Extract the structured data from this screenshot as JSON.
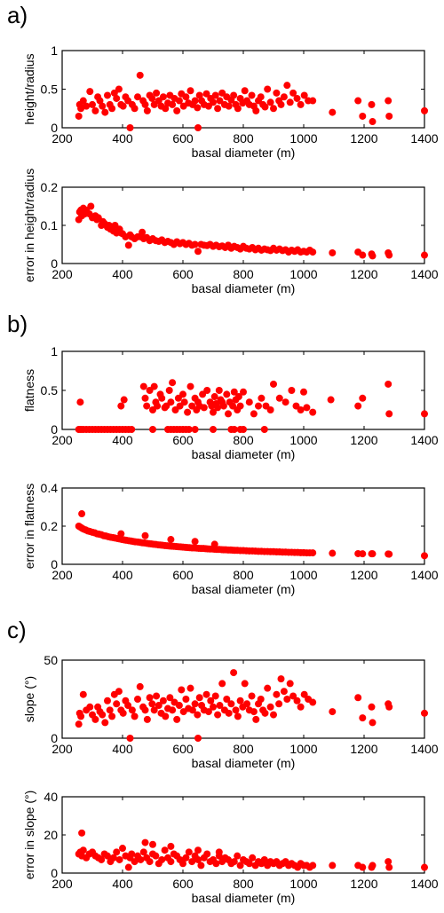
{
  "chart_data": [
    {
      "type": "scatter",
      "panel": "a)",
      "xlabel": "basal diameter (m)",
      "ylabel": "height/radius",
      "xlim": [
        200,
        1400
      ],
      "ylim": [
        0,
        1
      ],
      "xticks": [
        200,
        400,
        600,
        800,
        1000,
        1200,
        1400
      ],
      "yticks": [
        0,
        0.5,
        1
      ],
      "ytick_labels": [
        "0",
        "0.5",
        "1"
      ],
      "marker_color": "#ff0000",
      "x": [
        255,
        258,
        262,
        270,
        280,
        292,
        300,
        310,
        318,
        325,
        333,
        342,
        350,
        358,
        365,
        373,
        380,
        388,
        395,
        402,
        410,
        418,
        425,
        432,
        440,
        450,
        458,
        468,
        475,
        482,
        490,
        498,
        505,
        512,
        520,
        528,
        535,
        542,
        550,
        557,
        565,
        572,
        580,
        588,
        595,
        602,
        610,
        618,
        625,
        632,
        640,
        648,
        650,
        655,
        662,
        670,
        678,
        685,
        692,
        700,
        708,
        715,
        722,
        730,
        738,
        745,
        752,
        760,
        768,
        775,
        782,
        790,
        798,
        805,
        812,
        820,
        828,
        835,
        842,
        850,
        858,
        865,
        872,
        880,
        890,
        900,
        910,
        918,
        925,
        935,
        945,
        955,
        965,
        978,
        990,
        1002,
        1015,
        1030,
        1095,
        1180,
        1195,
        1225,
        1228,
        1280,
        1283,
        1400
      ],
      "y": [
        0.15,
        0.3,
        0.25,
        0.35,
        0.28,
        0.47,
        0.3,
        0.22,
        0.4,
        0.35,
        0.28,
        0.2,
        0.42,
        0.3,
        0.25,
        0.45,
        0.38,
        0.5,
        0.3,
        0.28,
        0.4,
        0.35,
        0.0,
        0.3,
        0.25,
        0.4,
        0.68,
        0.35,
        0.3,
        0.22,
        0.42,
        0.38,
        0.3,
        0.45,
        0.35,
        0.28,
        0.4,
        0.25,
        0.32,
        0.42,
        0.3,
        0.38,
        0.22,
        0.35,
        0.44,
        0.28,
        0.4,
        0.32,
        0.48,
        0.3,
        0.35,
        0.26,
        0.0,
        0.42,
        0.35,
        0.3,
        0.44,
        0.28,
        0.38,
        0.33,
        0.42,
        0.25,
        0.35,
        0.45,
        0.3,
        0.4,
        0.28,
        0.36,
        0.42,
        0.3,
        0.25,
        0.38,
        0.32,
        0.48,
        0.35,
        0.3,
        0.42,
        0.28,
        0.22,
        0.35,
        0.4,
        0.3,
        0.27,
        0.5,
        0.33,
        0.25,
        0.45,
        0.35,
        0.3,
        0.4,
        0.55,
        0.33,
        0.45,
        0.38,
        0.3,
        0.42,
        0.35,
        0.35,
        0.2,
        0.35,
        0.15,
        0.3,
        0.08,
        0.35,
        0.15,
        0.22
      ]
    },
    {
      "type": "scatter",
      "xlabel": "basal diameter (m)",
      "ylabel": "error in height/radius",
      "xlim": [
        200,
        1400
      ],
      "ylim": [
        0,
        0.2
      ],
      "xticks": [
        200,
        400,
        600,
        800,
        1000,
        1200,
        1400
      ],
      "yticks": [
        0,
        0.1,
        0.2
      ],
      "ytick_labels": [
        "0",
        "0.1",
        "0.2"
      ],
      "marker_color": "#ff0000",
      "x": [
        255,
        258,
        262,
        265,
        270,
        275,
        280,
        290,
        295,
        300,
        310,
        315,
        320,
        330,
        335,
        340,
        350,
        355,
        360,
        370,
        375,
        380,
        390,
        395,
        400,
        410,
        420,
        425,
        430,
        440,
        450,
        460,
        465,
        470,
        480,
        490,
        500,
        510,
        520,
        530,
        540,
        550,
        560,
        570,
        580,
        590,
        600,
        610,
        620,
        630,
        640,
        650,
        660,
        670,
        680,
        690,
        700,
        710,
        720,
        730,
        740,
        750,
        760,
        770,
        780,
        790,
        800,
        810,
        820,
        830,
        840,
        850,
        860,
        870,
        880,
        890,
        900,
        910,
        920,
        930,
        940,
        950,
        960,
        970,
        980,
        990,
        1000,
        1010,
        1020,
        1030,
        1095,
        1180,
        1195,
        1225,
        1228,
        1280,
        1283,
        1400
      ],
      "y": [
        0.115,
        0.135,
        0.14,
        0.125,
        0.145,
        0.13,
        0.14,
        0.13,
        0.15,
        0.12,
        0.125,
        0.115,
        0.12,
        0.1,
        0.11,
        0.105,
        0.095,
        0.1,
        0.09,
        0.085,
        0.1,
        0.08,
        0.09,
        0.08,
        0.078,
        0.07,
        0.048,
        0.075,
        0.07,
        0.065,
        0.07,
        0.07,
        0.082,
        0.065,
        0.068,
        0.06,
        0.065,
        0.06,
        0.058,
        0.062,
        0.055,
        0.058,
        0.055,
        0.05,
        0.057,
        0.052,
        0.055,
        0.05,
        0.053,
        0.048,
        0.05,
        0.032,
        0.05,
        0.048,
        0.047,
        0.05,
        0.045,
        0.048,
        0.044,
        0.046,
        0.042,
        0.048,
        0.04,
        0.045,
        0.042,
        0.038,
        0.045,
        0.04,
        0.038,
        0.042,
        0.036,
        0.04,
        0.035,
        0.038,
        0.036,
        0.034,
        0.04,
        0.035,
        0.038,
        0.034,
        0.036,
        0.03,
        0.035,
        0.032,
        0.036,
        0.03,
        0.032,
        0.03,
        0.035,
        0.03,
        0.028,
        0.03,
        0.022,
        0.025,
        0.02,
        0.028,
        0.022,
        0.022
      ]
    },
    {
      "type": "scatter",
      "panel": "b)",
      "xlabel": "basal diameter (m)",
      "ylabel": "flatness",
      "xlim": [
        200,
        1400
      ],
      "ylim": [
        0,
        1
      ],
      "xticks": [
        200,
        400,
        600,
        800,
        1000,
        1200,
        1400
      ],
      "yticks": [
        0,
        0.5,
        1
      ],
      "ytick_labels": [
        "0",
        "0.5",
        "1"
      ],
      "marker_color": "#ff0000",
      "x": [
        255,
        262,
        270,
        280,
        290,
        300,
        310,
        320,
        330,
        340,
        350,
        360,
        370,
        380,
        390,
        400,
        410,
        420,
        430,
        500,
        550,
        560,
        570,
        580,
        590,
        600,
        610,
        620,
        640,
        700,
        760,
        770,
        790,
        800,
        870,
        260,
        395,
        405,
        470,
        475,
        480,
        490,
        500,
        505,
        510,
        515,
        525,
        530,
        540,
        545,
        555,
        560,
        565,
        575,
        585,
        590,
        600,
        605,
        615,
        625,
        630,
        640,
        645,
        650,
        655,
        665,
        670,
        680,
        690,
        695,
        700,
        705,
        710,
        715,
        720,
        725,
        730,
        735,
        745,
        750,
        755,
        765,
        770,
        775,
        780,
        785,
        790,
        800,
        820,
        835,
        850,
        860,
        875,
        890,
        900,
        920,
        940,
        960,
        975,
        990,
        1000,
        1010,
        1030,
        1090,
        1180,
        1195,
        1280,
        1283,
        1400
      ],
      "y": [
        0,
        0,
        0,
        0,
        0,
        0,
        0,
        0,
        0,
        0,
        0,
        0,
        0,
        0,
        0,
        0,
        0,
        0,
        0,
        0,
        0,
        0,
        0,
        0,
        0,
        0,
        0,
        0,
        0,
        0,
        0,
        0,
        0,
        0,
        0,
        0.35,
        0.3,
        0.38,
        0.55,
        0.4,
        0.3,
        0.5,
        0.25,
        0.55,
        0.35,
        0.3,
        0.45,
        0.4,
        0.28,
        0.3,
        0.5,
        0.35,
        0.6,
        0.25,
        0.4,
        0.3,
        0.45,
        0.35,
        0.22,
        0.55,
        0.3,
        0.4,
        0.25,
        0.35,
        0.3,
        0.45,
        0.28,
        0.5,
        0.35,
        0.3,
        0.22,
        0.42,
        0.33,
        0.28,
        0.5,
        0.38,
        0.35,
        0.3,
        0.45,
        0.2,
        0.35,
        0.3,
        0.48,
        0.38,
        0.25,
        0.42,
        0.3,
        0.48,
        0.35,
        0.2,
        0.3,
        0.4,
        0.3,
        0.25,
        0.58,
        0.4,
        0.35,
        0.5,
        0.3,
        0.25,
        0.48,
        0.28,
        0.22,
        0.38,
        0.3,
        0.4,
        0.58,
        0.2,
        0.2
      ]
    },
    {
      "type": "scatter",
      "xlabel": "basal diameter (m)",
      "ylabel": "error in flatness",
      "xlim": [
        200,
        1400
      ],
      "ylim": [
        0,
        0.4
      ],
      "xticks": [
        200,
        400,
        600,
        800,
        1000,
        1200,
        1400
      ],
      "yticks": [
        0,
        0.2,
        0.4
      ],
      "ytick_labels": [
        "0",
        "0.2",
        "0.4"
      ],
      "marker_color": "#ff0000",
      "x": [
        255,
        260,
        265,
        270,
        278,
        285,
        292,
        300,
        308,
        315,
        322,
        330,
        338,
        345,
        352,
        360,
        368,
        375,
        383,
        390,
        398,
        405,
        412,
        420,
        428,
        435,
        442,
        450,
        458,
        465,
        472,
        480,
        488,
        495,
        502,
        510,
        518,
        525,
        532,
        540,
        548,
        555,
        562,
        570,
        578,
        585,
        592,
        600,
        608,
        615,
        622,
        630,
        638,
        645,
        652,
        660,
        668,
        675,
        682,
        690,
        698,
        705,
        712,
        720,
        728,
        735,
        742,
        750,
        758,
        765,
        772,
        780,
        790,
        800,
        810,
        820,
        830,
        840,
        850,
        860,
        870,
        880,
        890,
        900,
        910,
        920,
        930,
        940,
        950,
        960,
        970,
        980,
        990,
        1000,
        1010,
        1020,
        1030,
        1095,
        1180,
        1195,
        1225,
        1228,
        1280,
        1283,
        1400,
        265,
        395,
        475,
        560,
        640,
        705
      ],
      "y": [
        0.2,
        0.195,
        0.19,
        0.185,
        0.18,
        0.175,
        0.172,
        0.168,
        0.165,
        0.16,
        0.158,
        0.155,
        0.15,
        0.148,
        0.145,
        0.142,
        0.14,
        0.138,
        0.135,
        0.133,
        0.13,
        0.128,
        0.126,
        0.124,
        0.122,
        0.12,
        0.118,
        0.117,
        0.115,
        0.113,
        0.112,
        0.11,
        0.108,
        0.107,
        0.105,
        0.104,
        0.102,
        0.101,
        0.1,
        0.098,
        0.097,
        0.096,
        0.095,
        0.094,
        0.093,
        0.092,
        0.091,
        0.09,
        0.089,
        0.088,
        0.087,
        0.086,
        0.086,
        0.085,
        0.084,
        0.083,
        0.083,
        0.082,
        0.081,
        0.08,
        0.08,
        0.079,
        0.078,
        0.078,
        0.077,
        0.076,
        0.076,
        0.075,
        0.075,
        0.074,
        0.073,
        0.073,
        0.072,
        0.072,
        0.071,
        0.07,
        0.07,
        0.069,
        0.068,
        0.068,
        0.067,
        0.067,
        0.066,
        0.066,
        0.065,
        0.065,
        0.064,
        0.064,
        0.063,
        0.063,
        0.062,
        0.062,
        0.061,
        0.061,
        0.06,
        0.06,
        0.06,
        0.058,
        0.056,
        0.055,
        0.055,
        0.055,
        0.054,
        0.053,
        0.045,
        0.265,
        0.16,
        0.15,
        0.13,
        0.12,
        0.105
      ]
    },
    {
      "type": "scatter",
      "panel": "c)",
      "xlabel": "basal diameter (m)",
      "ylabel": "slope (°)",
      "xlim": [
        200,
        1400
      ],
      "ylim": [
        0,
        50
      ],
      "xticks": [
        200,
        400,
        600,
        800,
        1000,
        1200,
        1400
      ],
      "yticks": [
        0,
        50
      ],
      "ytick_labels": [
        "0",
        "50"
      ],
      "marker_color": "#ff0000",
      "x": [
        255,
        258,
        262,
        270,
        280,
        292,
        300,
        310,
        318,
        325,
        333,
        342,
        350,
        358,
        365,
        373,
        380,
        388,
        395,
        402,
        410,
        418,
        425,
        432,
        440,
        450,
        458,
        468,
        475,
        482,
        490,
        498,
        505,
        512,
        520,
        528,
        535,
        542,
        550,
        557,
        565,
        572,
        580,
        588,
        595,
        602,
        610,
        618,
        625,
        632,
        640,
        648,
        650,
        655,
        662,
        670,
        678,
        685,
        692,
        700,
        708,
        715,
        722,
        730,
        738,
        745,
        752,
        760,
        768,
        775,
        782,
        790,
        798,
        805,
        812,
        820,
        828,
        835,
        842,
        850,
        858,
        865,
        872,
        880,
        890,
        900,
        910,
        918,
        925,
        935,
        945,
        955,
        965,
        978,
        990,
        1002,
        1015,
        1030,
        1095,
        1180,
        1195,
        1225,
        1228,
        1280,
        1283,
        1400
      ],
      "y": [
        9,
        16,
        14,
        28,
        18,
        20,
        15,
        12,
        20,
        17,
        15,
        10,
        24,
        18,
        14,
        28,
        22,
        30,
        18,
        16,
        24,
        21,
        0,
        18,
        14,
        25,
        33,
        20,
        18,
        12,
        26,
        22,
        18,
        27,
        21,
        16,
        24,
        14,
        19,
        26,
        18,
        23,
        12,
        21,
        31,
        17,
        25,
        19,
        32,
        18,
        22,
        15,
        0,
        26,
        21,
        18,
        28,
        17,
        24,
        20,
        27,
        15,
        21,
        35,
        18,
        25,
        16,
        22,
        42,
        18,
        14,
        24,
        20,
        35,
        22,
        18,
        27,
        17,
        12,
        22,
        25,
        18,
        16,
        32,
        20,
        15,
        28,
        22,
        38,
        30,
        25,
        35,
        27,
        24,
        20,
        28,
        25,
        23,
        17,
        26,
        13,
        20,
        10,
        22,
        20,
        16
      ]
    },
    {
      "type": "scatter",
      "xlabel": "basal diameter (m)",
      "ylabel": "error in slope (°)",
      "xlim": [
        200,
        1400
      ],
      "ylim": [
        0,
        40
      ],
      "xticks": [
        200,
        400,
        600,
        800,
        1000,
        1200,
        1400
      ],
      "yticks": [
        0,
        20,
        40
      ],
      "ytick_labels": [
        "0",
        "20",
        "40"
      ],
      "marker_color": "#ff0000",
      "x": [
        255,
        260,
        265,
        270,
        280,
        290,
        300,
        310,
        320,
        330,
        340,
        350,
        360,
        370,
        380,
        390,
        400,
        410,
        420,
        425,
        430,
        440,
        450,
        460,
        470,
        480,
        490,
        500,
        510,
        520,
        530,
        540,
        550,
        560,
        570,
        580,
        590,
        600,
        610,
        620,
        630,
        640,
        650,
        660,
        670,
        680,
        690,
        700,
        710,
        720,
        730,
        740,
        750,
        760,
        770,
        780,
        790,
        800,
        810,
        820,
        830,
        840,
        850,
        860,
        870,
        880,
        890,
        900,
        910,
        920,
        930,
        940,
        950,
        960,
        970,
        980,
        990,
        1000,
        1010,
        1020,
        1030,
        1095,
        1180,
        1195,
        1225,
        1228,
        1280,
        1283,
        1400,
        265,
        475,
        500,
        560,
        650,
        720
      ],
      "y": [
        10,
        11,
        9,
        12,
        8,
        10,
        11,
        9,
        8,
        7,
        10,
        9,
        6,
        8,
        11,
        7,
        13,
        9,
        3,
        8,
        10,
        6,
        9,
        7,
        11,
        8,
        6,
        10,
        9,
        5,
        7,
        12,
        8,
        6,
        10,
        9,
        7,
        5,
        8,
        11,
        6,
        9,
        7,
        4,
        8,
        10,
        6,
        7,
        5,
        9,
        6,
        8,
        7,
        5,
        6,
        9,
        4,
        7,
        6,
        5,
        8,
        4,
        6,
        5,
        7,
        4,
        6,
        5,
        6,
        4,
        5,
        6,
        4,
        5,
        4,
        3,
        5,
        4,
        4,
        3,
        4,
        4,
        4,
        3,
        3,
        4,
        6,
        3,
        3,
        21,
        16,
        15,
        14,
        12,
        11
      ]
    }
  ]
}
